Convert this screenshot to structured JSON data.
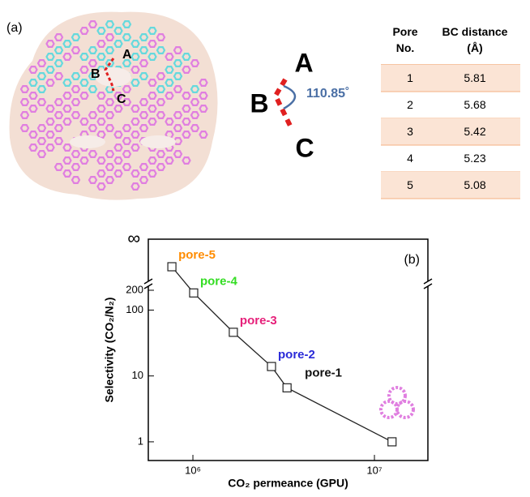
{
  "panel_a": {
    "label": "(a)",
    "structure_labels": [
      "A",
      "B",
      "C"
    ],
    "angle_labels": [
      "A",
      "B",
      "C"
    ],
    "angle": "110.85˚"
  },
  "table": {
    "headers": [
      "Pore No.",
      "BC distance (Å)"
    ],
    "rows": [
      [
        "1",
        "5.81"
      ],
      [
        "2",
        "5.68"
      ],
      [
        "3",
        "5.42"
      ],
      [
        "4",
        "5.23"
      ],
      [
        "5",
        "5.08"
      ]
    ]
  },
  "chart_data": {
    "type": "scatter",
    "panel_label": "(b)",
    "x_label": "CO₂ permeance (GPU)",
    "y_label": "Selectivity (CO₂/N₂)",
    "log_x": true,
    "log_y": true,
    "y_break_label": "∞",
    "xlim": [
      568000,
      19700000
    ],
    "xticks": [
      {
        "value": 1000000,
        "label": "10⁶"
      },
      {
        "value": 10000000,
        "label": "10⁷"
      }
    ],
    "ylim": [
      0.52,
      200
    ],
    "yticks": [
      1,
      10,
      100,
      200
    ],
    "series": [
      {
        "color": "#222222",
        "x": [
          766000,
          1010000,
          1670000,
          2710000,
          3300000,
          12500000
        ],
        "values": [
          null,
          182,
          46,
          13.9,
          6.6,
          1
        ]
      }
    ],
    "annotations": [
      {
        "text": "pore-5",
        "color": "#ff8c00"
      },
      {
        "text": "pore-4",
        "color": "#33dd22"
      },
      {
        "text": "pore-3",
        "color": "#e6207a"
      },
      {
        "text": "pore-2",
        "color": "#2a2ad8"
      },
      {
        "text": "pore-1",
        "color": "#111111"
      }
    ]
  }
}
